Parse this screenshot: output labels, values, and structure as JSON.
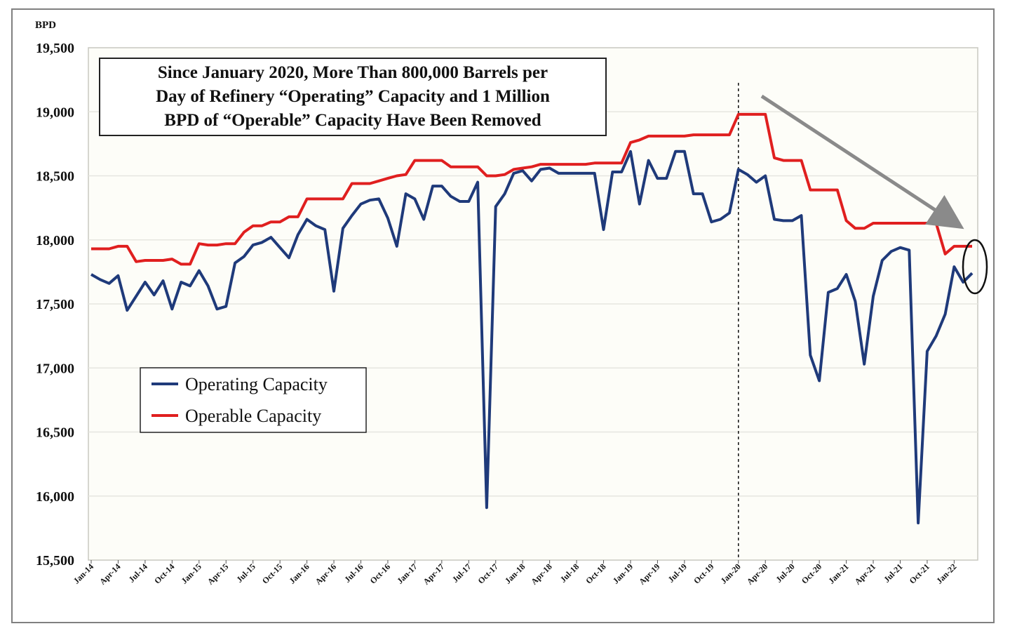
{
  "chart_data": {
    "type": "line",
    "title_lines": [
      "Since January 2020, More Than 800,000 Barrels per",
      "Day of Refinery “Operating” Capacity and 1 Million",
      "BPD of “Operable” Capacity Have Been Removed"
    ],
    "ylabel": "BPD",
    "xlabel": "",
    "ylim": [
      15500,
      19500
    ],
    "y_ticks": [
      "15,500",
      "16,000",
      "16,500",
      "17,000",
      "17,500",
      "18,000",
      "18,500",
      "19,000",
      "19,500"
    ],
    "y_tick_values": [
      15500,
      16000,
      16500,
      17000,
      17500,
      18000,
      18500,
      19000,
      19500
    ],
    "x_start": "2014-01",
    "x_end": "2022-04",
    "x_tick_labels": [
      "Jan-14",
      "Apr-14",
      "Jul-14",
      "Oct-14",
      "Jan-15",
      "Apr-15",
      "Jul-15",
      "Oct-15",
      "Jan-16",
      "Apr-16",
      "Jul-16",
      "Oct-16",
      "Jan-17",
      "Apr-17",
      "Jul-17",
      "Oct-17",
      "Jan-18",
      "Apr-18",
      "Jul-18",
      "Oct-18",
      "Jan-19",
      "Apr-19",
      "Jul-19",
      "Oct-19",
      "Jan-20",
      "Apr-20",
      "Jul-20",
      "Oct-20",
      "Jan-21",
      "Apr-21",
      "Jul-21",
      "Oct-21",
      "Jan-22"
    ],
    "grid": true,
    "legend_position": "lower-left",
    "reference_line_at": "Jan-20",
    "series": [
      {
        "name": "Operating Capacity",
        "color": "#1f3a7a",
        "values": [
          17730,
          17690,
          17660,
          17720,
          17450,
          17560,
          17670,
          17570,
          17680,
          17460,
          17670,
          17640,
          17760,
          17640,
          17460,
          17480,
          17820,
          17870,
          17960,
          17980,
          18020,
          17940,
          17860,
          18040,
          18160,
          18110,
          18080,
          17600,
          18090,
          18190,
          18280,
          18310,
          18320,
          18170,
          17950,
          18360,
          18320,
          18160,
          18420,
          18420,
          18340,
          18300,
          18300,
          18450,
          15910,
          18260,
          18360,
          18520,
          18540,
          18460,
          18550,
          18560,
          18520,
          18520,
          18520,
          18520,
          18520,
          18080,
          18530,
          18530,
          18690,
          18280,
          18620,
          18480,
          18480,
          18690,
          18690,
          18360,
          18360,
          18140,
          18160,
          18210,
          18550,
          18510,
          18450,
          18500,
          18160,
          18150,
          18150,
          18190,
          17100,
          16900,
          17590,
          17620,
          17730,
          17520,
          17030,
          17560,
          17840,
          17910,
          17940,
          17920,
          15790,
          17130,
          17250,
          17420,
          17790,
          17670,
          17740
        ],
        "labels": []
      },
      {
        "name": "Operable Capacity",
        "color": "#e01f1f",
        "values": [
          17930,
          17930,
          17930,
          17950,
          17950,
          17830,
          17840,
          17840,
          17840,
          17850,
          17810,
          17810,
          17970,
          17960,
          17960,
          17970,
          17970,
          18060,
          18110,
          18110,
          18140,
          18140,
          18180,
          18180,
          18320,
          18320,
          18320,
          18320,
          18320,
          18440,
          18440,
          18440,
          18460,
          18480,
          18500,
          18510,
          18620,
          18620,
          18620,
          18620,
          18570,
          18570,
          18570,
          18570,
          18500,
          18500,
          18510,
          18550,
          18560,
          18570,
          18590,
          18590,
          18590,
          18590,
          18590,
          18590,
          18600,
          18600,
          18600,
          18600,
          18760,
          18780,
          18810,
          18810,
          18810,
          18810,
          18810,
          18820,
          18820,
          18820,
          18820,
          18820,
          18980,
          18980,
          18980,
          18980,
          18640,
          18620,
          18620,
          18620,
          18390,
          18390,
          18390,
          18390,
          18150,
          18090,
          18090,
          18130,
          18130,
          18130,
          18130,
          18130,
          18130,
          18130,
          18130,
          17890,
          17950,
          17950,
          17950
        ],
        "labels": []
      }
    ]
  },
  "legend": {
    "items": [
      {
        "label": "Operating Capacity",
        "color": "#1f3a7a"
      },
      {
        "label": "Operable Capacity",
        "color": "#e01f1f"
      }
    ]
  }
}
